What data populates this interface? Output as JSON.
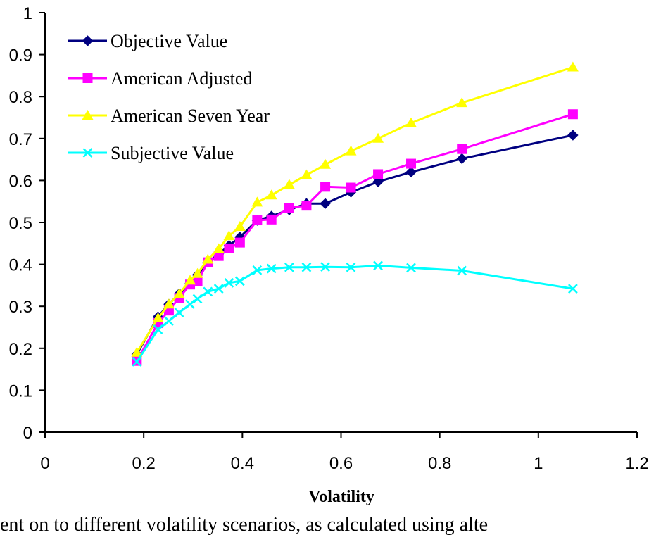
{
  "chart_data": {
    "type": "line",
    "title": "",
    "xlabel": "Volatility",
    "ylabel": "",
    "xlim": [
      0,
      1.2
    ],
    "ylim": [
      0,
      1
    ],
    "x_ticks": [
      "0",
      "0.2",
      "0.4",
      "0.6",
      "0.8",
      "1",
      "1.2"
    ],
    "y_ticks": [
      "0",
      "0.1",
      "0.2",
      "0.3",
      "0.4",
      "0.5",
      "0.6",
      "0.7",
      "0.8",
      "0.9",
      "1"
    ],
    "grid": false,
    "legend_position": "top-left",
    "series": [
      {
        "name": "Objective Value",
        "color": "#000080",
        "marker": "diamond",
        "x": [
          0.186,
          0.229,
          0.251,
          0.272,
          0.294,
          0.309,
          0.33,
          0.352,
          0.373,
          0.395,
          0.43,
          0.459,
          0.495,
          0.53,
          0.568,
          0.62,
          0.675,
          0.742,
          0.845,
          1.07
        ],
        "y": [
          0.186,
          0.275,
          0.305,
          0.33,
          0.355,
          0.375,
          0.405,
          0.425,
          0.445,
          0.465,
          0.505,
          0.515,
          0.53,
          0.545,
          0.545,
          0.572,
          0.597,
          0.62,
          0.652,
          0.708
        ]
      },
      {
        "name": "American Adjusted",
        "color": "#ff00ff",
        "marker": "square",
        "x": [
          0.186,
          0.229,
          0.251,
          0.272,
          0.294,
          0.309,
          0.33,
          0.352,
          0.373,
          0.395,
          0.43,
          0.459,
          0.495,
          0.53,
          0.568,
          0.62,
          0.675,
          0.742,
          0.845,
          1.07
        ],
        "y": [
          0.17,
          0.26,
          0.29,
          0.32,
          0.352,
          0.36,
          0.405,
          0.42,
          0.438,
          0.452,
          0.505,
          0.507,
          0.535,
          0.54,
          0.585,
          0.583,
          0.615,
          0.64,
          0.675,
          0.758
        ]
      },
      {
        "name": "American Seven Year",
        "color": "#ffff00",
        "marker": "triangle",
        "x": [
          0.186,
          0.229,
          0.251,
          0.272,
          0.294,
          0.309,
          0.33,
          0.352,
          0.373,
          0.395,
          0.43,
          0.459,
          0.495,
          0.53,
          0.568,
          0.62,
          0.675,
          0.742,
          0.845,
          1.07
        ],
        "y": [
          0.19,
          0.272,
          0.305,
          0.33,
          0.362,
          0.378,
          0.412,
          0.437,
          0.468,
          0.49,
          0.548,
          0.565,
          0.59,
          0.613,
          0.638,
          0.67,
          0.7,
          0.737,
          0.785,
          0.87
        ]
      },
      {
        "name": "Subjective Value",
        "color": "#00ffff",
        "marker": "x",
        "x": [
          0.186,
          0.229,
          0.251,
          0.272,
          0.294,
          0.309,
          0.33,
          0.352,
          0.373,
          0.395,
          0.43,
          0.459,
          0.495,
          0.53,
          0.568,
          0.62,
          0.675,
          0.742,
          0.845,
          1.07
        ],
        "y": [
          0.168,
          0.245,
          0.265,
          0.285,
          0.305,
          0.318,
          0.335,
          0.342,
          0.356,
          0.36,
          0.386,
          0.39,
          0.393,
          0.393,
          0.394,
          0.393,
          0.397,
          0.392,
          0.385,
          0.342
        ]
      }
    ]
  },
  "caption": "ent on to different volatility scenarios, as calculated using alte"
}
